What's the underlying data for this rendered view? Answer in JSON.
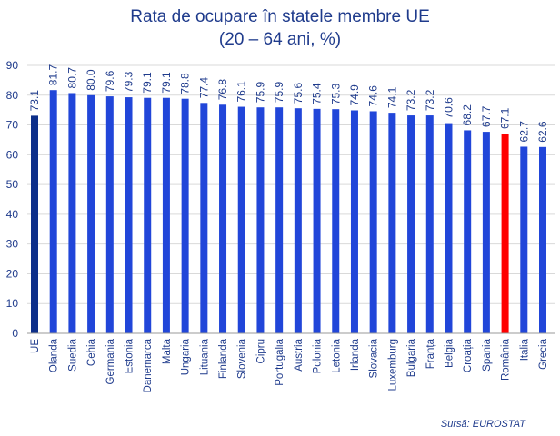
{
  "chart_data": {
    "type": "bar",
    "title": [
      "Rata de ocupare în statele membre UE",
      "(20 – 64 ani, %)"
    ],
    "source": "Sursă: EUROSTAT",
    "xlabel": "",
    "ylabel": "",
    "ylim": [
      0,
      90
    ],
    "yticks": [
      0,
      10,
      20,
      30,
      40,
      50,
      60,
      70,
      80,
      90
    ],
    "grid": true,
    "categories": [
      "UE",
      "Olanda",
      "Suedia",
      "Cehia",
      "Germania",
      "Estonia",
      "Danemarca",
      "Malta",
      "Ungaria",
      "Lituania",
      "Finlanda",
      "Slovenia",
      "Cipru",
      "Portugalia",
      "Austria",
      "Polonia",
      "Letonia",
      "Irlanda",
      "Slovacia",
      "Luxemburg",
      "Bulgaria",
      "Franța",
      "Belgia",
      "Croația",
      "Spania",
      "România",
      "Italia",
      "Grecia"
    ],
    "values": [
      73.1,
      81.7,
      80.7,
      80.0,
      79.6,
      79.3,
      79.1,
      79.1,
      78.8,
      77.4,
      76.8,
      76.1,
      75.9,
      75.9,
      75.6,
      75.4,
      75.3,
      74.9,
      74.6,
      74.1,
      73.2,
      73.2,
      70.6,
      68.2,
      67.7,
      67.1,
      62.7,
      62.6
    ],
    "value_labels": [
      "73.1",
      "81.7",
      "80.7",
      "80.0",
      "79.6",
      "79.3",
      "79.1",
      "79.1",
      "78.8",
      "77.4",
      "76.8",
      "76.1",
      "75.9",
      "75.9",
      "75.6",
      "75.4",
      "75.3",
      "74.9",
      "74.6",
      "74.1",
      "73.2",
      "73.2",
      "70.6",
      "68.2",
      "67.7",
      "67.1",
      "62.7",
      "62.6"
    ],
    "colors": {
      "default": "#2146d9",
      "UE": "#0d2f8a",
      "România": "#ff0000",
      "grid": "#d9d9d9",
      "axis": "#999999"
    }
  }
}
